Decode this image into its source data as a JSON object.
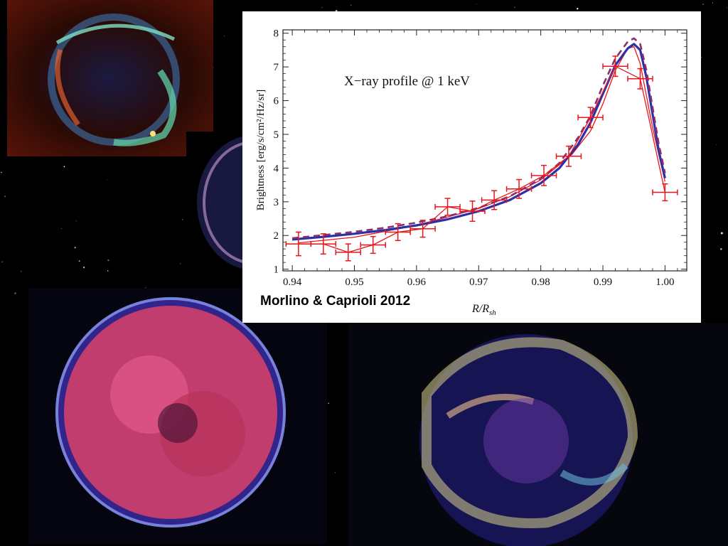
{
  "citation": "Morlino & Caprioli 2012",
  "chart_data": {
    "type": "line",
    "title": "X−ray profile @ 1 keV",
    "ylabel": "Brightness [erg/s/cm²/Hz/sr]",
    "xlabel": "R/Rsh",
    "xlabel_parts": {
      "main": "R/R",
      "sub": "sh"
    },
    "xlim": [
      0.9385,
      1.0035
    ],
    "ylim": [
      0.95,
      8.1
    ],
    "x_ticks": [
      0.94,
      0.95,
      0.96,
      0.97,
      0.98,
      0.99,
      1.0
    ],
    "x_tick_labels": [
      "0.94",
      "0.95",
      "0.96",
      "0.97",
      "0.98",
      "0.99",
      "1.00"
    ],
    "y_ticks": [
      1,
      2,
      3,
      4,
      5,
      6,
      7,
      8
    ],
    "y_tick_labels": [
      "1",
      "2",
      "3",
      "4",
      "5",
      "6",
      "7",
      "8"
    ],
    "series": [
      {
        "style": "red-errorbars",
        "color": "#e8151b",
        "x": [
          0.941,
          0.945,
          0.949,
          0.953,
          0.957,
          0.961,
          0.965,
          0.969,
          0.9725,
          0.9765,
          0.9805,
          0.9845,
          0.988,
          0.992,
          0.996,
          1.0
        ],
        "y": [
          1.75,
          1.75,
          1.5,
          1.72,
          2.1,
          2.2,
          2.85,
          2.72,
          3.05,
          3.38,
          3.78,
          4.35,
          5.5,
          7.02,
          6.65,
          3.28
        ],
        "yerr": [
          0.35,
          0.3,
          0.25,
          0.25,
          0.25,
          0.25,
          0.25,
          0.3,
          0.28,
          0.28,
          0.3,
          0.3,
          0.3,
          0.3,
          0.3,
          0.25
        ],
        "xerr": [
          0.002,
          0.002,
          0.002,
          0.002,
          0.002,
          0.002,
          0.002,
          0.002,
          0.002,
          0.002,
          0.002,
          0.002,
          0.002,
          0.002,
          0.002,
          0.002
        ]
      },
      {
        "style": "red-thin-line",
        "color": "#e8151b",
        "x": [
          0.941,
          0.95,
          0.96,
          0.97,
          0.975,
          0.98,
          0.985,
          0.988,
          0.99,
          0.992,
          0.994,
          0.995,
          0.996,
          0.998,
          0.9995,
          1.0
        ],
        "y": [
          1.78,
          1.95,
          2.3,
          2.8,
          3.15,
          3.65,
          4.4,
          5.1,
          5.9,
          6.9,
          7.55,
          7.6,
          7.1,
          5.2,
          4.0,
          3.6
        ]
      },
      {
        "style": "blue-solid",
        "color": "#2e2ea6",
        "x": [
          0.94,
          0.945,
          0.95,
          0.955,
          0.96,
          0.965,
          0.97,
          0.975,
          0.98,
          0.983,
          0.986,
          0.988,
          0.99,
          0.992,
          0.994,
          0.995,
          0.996,
          0.997,
          0.998,
          0.999,
          1.0
        ],
        "y": [
          1.88,
          1.96,
          2.05,
          2.16,
          2.3,
          2.48,
          2.72,
          3.05,
          3.55,
          4.0,
          4.7,
          5.35,
          6.2,
          7.05,
          7.55,
          7.68,
          7.5,
          6.7,
          5.6,
          4.5,
          3.7
        ]
      },
      {
        "style": "purple-dashed",
        "color": "#8a2f6e",
        "x": [
          0.94,
          0.945,
          0.95,
          0.955,
          0.96,
          0.965,
          0.97,
          0.975,
          0.98,
          0.983,
          0.986,
          0.988,
          0.99,
          0.992,
          0.994,
          0.995,
          0.996,
          0.997,
          0.998,
          0.999,
          1.0
        ],
        "y": [
          1.92,
          2.01,
          2.11,
          2.23,
          2.38,
          2.57,
          2.82,
          3.16,
          3.68,
          4.15,
          4.9,
          5.55,
          6.45,
          7.25,
          7.75,
          7.85,
          7.68,
          6.9,
          5.8,
          4.7,
          3.85
        ]
      }
    ]
  }
}
